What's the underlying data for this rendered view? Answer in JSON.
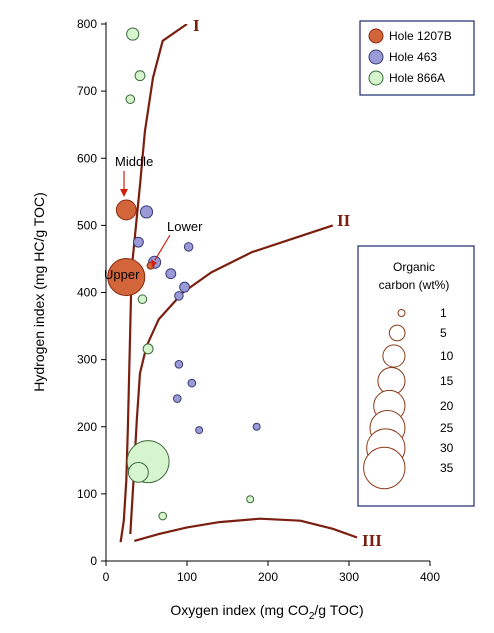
{
  "chart_data": {
    "type": "scatter",
    "xlabel": "Oxygen index (mg CO₂/g TOC)",
    "xlabel_parts": [
      "Oxygen index (mg CO",
      "2",
      "/g TOC)"
    ],
    "ylabel": "Hydrogen index (mg HC/g TOC)",
    "xlim": [
      0,
      400
    ],
    "ylim": [
      0,
      800
    ],
    "xticks": [
      0,
      100,
      200,
      300,
      400
    ],
    "yticks": [
      0,
      100,
      200,
      300,
      400,
      500,
      600,
      700,
      800
    ],
    "grid": false,
    "legend_position": "top-right",
    "series": [
      {
        "name": "Hole 1207B",
        "color": "#d2663a",
        "stroke": "#8b2a10",
        "points": [
          {
            "x": 25,
            "y": 423,
            "toc": 28,
            "label": "Upper"
          },
          {
            "x": 25,
            "y": 523,
            "toc": 8,
            "label": "Middle"
          },
          {
            "x": 55,
            "y": 440,
            "toc": 1,
            "label": "Lower"
          }
        ]
      },
      {
        "name": "Hole 463",
        "color": "#9a9ad6",
        "stroke": "#3a3a78",
        "points": [
          {
            "x": 50,
            "y": 520,
            "toc": 3
          },
          {
            "x": 40,
            "y": 475,
            "toc": 2
          },
          {
            "x": 60,
            "y": 445,
            "toc": 3
          },
          {
            "x": 102,
            "y": 468,
            "toc": 1.5
          },
          {
            "x": 80,
            "y": 428,
            "toc": 2
          },
          {
            "x": 97,
            "y": 408,
            "toc": 2
          },
          {
            "x": 90,
            "y": 395,
            "toc": 1.5
          },
          {
            "x": 90,
            "y": 293,
            "toc": 1.2
          },
          {
            "x": 106,
            "y": 265,
            "toc": 1.2
          },
          {
            "x": 88,
            "y": 242,
            "toc": 1.2
          },
          {
            "x": 115,
            "y": 195,
            "toc": 1
          },
          {
            "x": 186,
            "y": 200,
            "toc": 1
          }
        ]
      },
      {
        "name": "Hole 866A",
        "color": "#d6f5cf",
        "stroke": "#3a6a3a",
        "points": [
          {
            "x": 33,
            "y": 785,
            "toc": 3
          },
          {
            "x": 42,
            "y": 723,
            "toc": 2
          },
          {
            "x": 30,
            "y": 688,
            "toc": 1.5
          },
          {
            "x": 52,
            "y": 316,
            "toc": 2
          },
          {
            "x": 45,
            "y": 390,
            "toc": 1.5
          },
          {
            "x": 52,
            "y": 148,
            "toc": 36
          },
          {
            "x": 40,
            "y": 132,
            "toc": 8
          },
          {
            "x": 70,
            "y": 67,
            "toc": 1.2
          },
          {
            "x": 178,
            "y": 92,
            "toc": 1
          }
        ]
      }
    ],
    "curves": [
      {
        "label": "I",
        "points": [
          [
            18,
            28
          ],
          [
            22,
            60
          ],
          [
            25,
            120
          ],
          [
            27,
            200
          ],
          [
            29,
            300
          ],
          [
            31,
            400
          ],
          [
            33,
            450
          ],
          [
            37,
            500
          ],
          [
            42,
            560
          ],
          [
            48,
            640
          ],
          [
            58,
            720
          ],
          [
            70,
            775
          ],
          [
            100,
            800
          ]
        ]
      },
      {
        "label": "II",
        "points": [
          [
            30,
            40
          ],
          [
            34,
            120
          ],
          [
            38,
            210
          ],
          [
            42,
            280
          ],
          [
            50,
            320
          ],
          [
            65,
            360
          ],
          [
            95,
            400
          ],
          [
            130,
            430
          ],
          [
            180,
            460
          ],
          [
            230,
            480
          ],
          [
            280,
            500
          ]
        ]
      },
      {
        "label": "III",
        "points": [
          [
            35,
            30
          ],
          [
            65,
            40
          ],
          [
            100,
            50
          ],
          [
            140,
            58
          ],
          [
            190,
            63
          ],
          [
            240,
            60
          ],
          [
            280,
            48
          ],
          [
            310,
            35
          ]
        ]
      }
    ],
    "annotations": [
      "Middle",
      "Lower",
      "Upper"
    ],
    "curve_labels": [
      "I",
      "II",
      "III"
    ],
    "size_legend": {
      "title_line1": "Organic",
      "title_line2": "carbon (wt%)",
      "values": [
        1,
        5,
        10,
        15,
        20,
        25,
        30,
        35
      ]
    }
  }
}
